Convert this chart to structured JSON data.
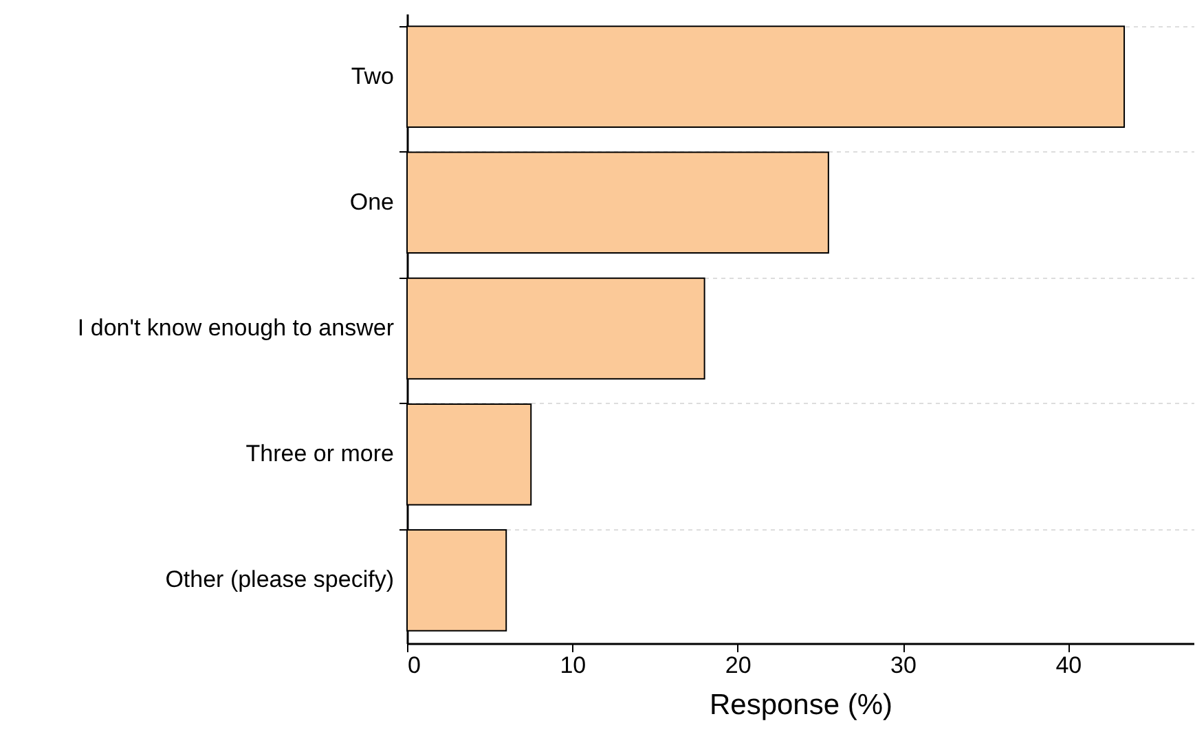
{
  "chart_data": {
    "type": "bar",
    "orientation": "horizontal",
    "xlabel": "Response (%)",
    "categories": [
      "Two",
      "One",
      "I don't know enough to answer",
      "Three or more",
      "Other (please specify)"
    ],
    "values": [
      43.4,
      25.5,
      18.0,
      7.5,
      6.0
    ],
    "color": "#fbc998",
    "xlim": [
      0,
      47.6
    ],
    "xticks": [
      0,
      10,
      20,
      30,
      40
    ],
    "grid": "y"
  }
}
